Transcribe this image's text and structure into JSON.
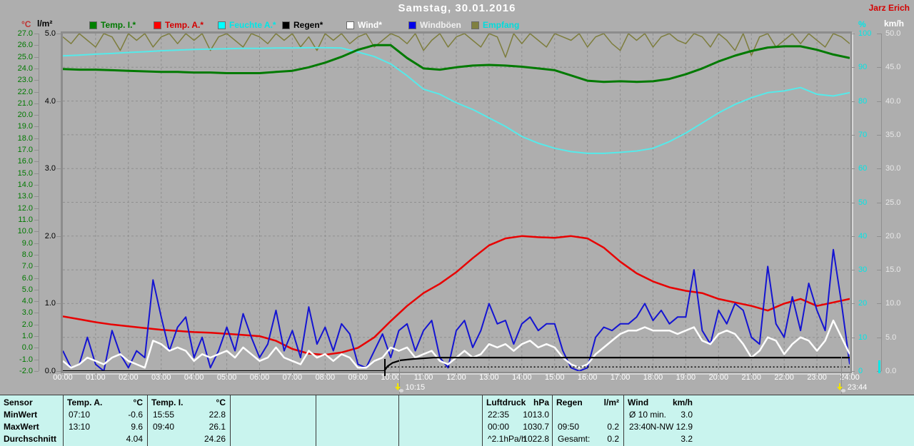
{
  "window": {
    "title": "Samstag, 30.01.2016",
    "operator": "Jarz Erich"
  },
  "axes": {
    "degC": {
      "unit": "°C",
      "labels": [
        "27.0",
        "26.0",
        "25.0",
        "24.0",
        "23.0",
        "22.0",
        "21.0",
        "20.0",
        "19.0",
        "18.0",
        "17.0",
        "16.0",
        "15.0",
        "14.0",
        "13.0",
        "12.0",
        "11.0",
        "10.0",
        "9.0",
        "8.0",
        "7.0",
        "6.0",
        "5.0",
        "4.0",
        "3.0",
        "2.0",
        "1.0",
        "0.0",
        "-1.0",
        "-2.0"
      ]
    },
    "lm2": {
      "unit": "l/m²",
      "labels": [
        "5.0",
        "4.0",
        "3.0",
        "2.0",
        "1.0",
        "0.0"
      ]
    },
    "pct": {
      "unit": "%",
      "labels": [
        "100",
        "90",
        "80",
        "70",
        "60",
        "50",
        "40",
        "30",
        "20",
        "10",
        "0"
      ]
    },
    "kmh": {
      "unit": "km/h",
      "labels": [
        "50.0",
        "45.0",
        "40.0",
        "35.0",
        "30.0",
        "25.0",
        "20.0",
        "15.0",
        "10.0",
        "5.0",
        "0.0"
      ]
    }
  },
  "xaxis": {
    "labels": [
      "00:00",
      "01:00",
      "02:00",
      "03:00",
      "04:00",
      "05:00",
      "06:00",
      "07:00",
      "08:00",
      "09:00",
      "10:00",
      "11:00",
      "12:00",
      "13:00",
      "14:00",
      "15:00",
      "16:00",
      "17:00",
      "18:00",
      "19:00",
      "20:00",
      "21:00",
      "22:00",
      "23:00",
      "24:00"
    ],
    "markers": [
      {
        "label": "10:15",
        "t": 10.25
      },
      {
        "label": "23:44",
        "t": 23.733
      }
    ]
  },
  "legend": {
    "items": [
      {
        "key": "temp-i",
        "label": "Temp. I.*",
        "swatch": "#008000",
        "text_color": "#007a00"
      },
      {
        "key": "temp-a",
        "label": "Temp. A.*",
        "swatch": "#ff0000",
        "text_color": "#d40000"
      },
      {
        "key": "feuchte-a",
        "label": "Feuchte A.*",
        "swatch": "#00ffff",
        "text_color": "#00e6e6"
      },
      {
        "key": "regen",
        "label": "Regen*",
        "swatch": "#000000",
        "text_color": "#000000"
      },
      {
        "key": "wind",
        "label": "Wind*",
        "swatch": "#ffffff",
        "text_color": "#ffffff"
      },
      {
        "key": "windboeen",
        "label": "Windböen",
        "swatch": "#0000e8",
        "text_color": "#f0f0f0"
      },
      {
        "key": "empfang",
        "label": "Empfang",
        "swatch": "#808040",
        "text_color": "#00dcdc"
      }
    ]
  },
  "chart_data": {
    "type": "line",
    "title": "Samstag, 30.01.2016",
    "x_range": [
      0,
      24
    ],
    "axes_ranges": {
      "degC": {
        "min": -2,
        "max": 27
      },
      "lm2": {
        "min": 0,
        "max": 5
      },
      "pct": {
        "min": 0,
        "max": 100
      },
      "kmh": {
        "min": 0,
        "max": 50
      }
    },
    "series": [
      {
        "key": "empfang",
        "name": "Empfang",
        "axis": "pct",
        "color": "#7d7d3c",
        "start": 0,
        "step": 0.25,
        "values": [
          99,
          97,
          100,
          98,
          96,
          100,
          99,
          95,
          100,
          98,
          100,
          96,
          99,
          100,
          97,
          100,
          98,
          100,
          95,
          99,
          100,
          98,
          96,
          100,
          99,
          97,
          100,
          98,
          100,
          96,
          99,
          95,
          100,
          98,
          100,
          97,
          99,
          100,
          96,
          98,
          100,
          99,
          97,
          100,
          95,
          98,
          100,
          96,
          99,
          100,
          98,
          96,
          100,
          99,
          93,
          100,
          97,
          100,
          98,
          96,
          100,
          99,
          98,
          100,
          96,
          99,
          100,
          97,
          95,
          100,
          98,
          100,
          96,
          99,
          100,
          98,
          97,
          100,
          99,
          96,
          100,
          98,
          95,
          100,
          93.5,
          99,
          100,
          96,
          98,
          100,
          97,
          100,
          98,
          96,
          100,
          99,
          97
        ]
      },
      {
        "key": "feuchte-a",
        "name": "Feuchte A.",
        "axis": "pct",
        "color": "#55eaea",
        "start": 0,
        "step": 0.5,
        "values": [
          93.4,
          93.6,
          93.9,
          94.1,
          94.4,
          94.6,
          94.9,
          95.1,
          95.3,
          95.4,
          95.5,
          95.6,
          95.6,
          95.7,
          95.7,
          95.8,
          95.8,
          95.7,
          94.5,
          93.2,
          91.0,
          87.5,
          83.5,
          82.0,
          79.5,
          77.5,
          75.0,
          72.5,
          69.5,
          67.5,
          66.0,
          65.0,
          64.5,
          64.5,
          64.8,
          65.2,
          66.0,
          68.0,
          70.5,
          73.5,
          76.5,
          79.0,
          81.0,
          82.5,
          83.0,
          84.0,
          82.0,
          81.5,
          82.5
        ]
      },
      {
        "key": "temp-i",
        "name": "Temp. I.",
        "axis": "degC",
        "color": "#007a00",
        "start": 0,
        "step": 0.5,
        "values": [
          23.95,
          23.9,
          23.9,
          23.85,
          23.8,
          23.75,
          23.7,
          23.7,
          23.65,
          23.65,
          23.6,
          23.6,
          23.6,
          23.7,
          23.8,
          24.1,
          24.5,
          25.0,
          25.6,
          26.0,
          26.0,
          24.9,
          24.0,
          23.9,
          24.1,
          24.25,
          24.3,
          24.25,
          24.15,
          24.0,
          23.85,
          23.4,
          22.95,
          22.85,
          22.9,
          22.85,
          22.9,
          23.1,
          23.5,
          24.0,
          24.6,
          25.1,
          25.5,
          25.8,
          25.9,
          25.9,
          25.6,
          25.2,
          24.9
        ]
      },
      {
        "key": "temp-a",
        "name": "Temp. A.",
        "axis": "degC",
        "color": "#e80000",
        "start": 0,
        "step": 0.5,
        "values": [
          2.7,
          2.45,
          2.2,
          2.0,
          1.85,
          1.7,
          1.55,
          1.45,
          1.35,
          1.3,
          1.2,
          1.1,
          1.0,
          0.6,
          -0.1,
          -0.5,
          -0.6,
          -0.4,
          0.0,
          0.9,
          2.3,
          3.6,
          4.7,
          5.5,
          6.5,
          7.7,
          8.8,
          9.4,
          9.6,
          9.5,
          9.45,
          9.6,
          9.4,
          8.6,
          7.4,
          6.4,
          5.7,
          5.2,
          4.9,
          4.7,
          4.2,
          3.9,
          3.6,
          3.2,
          3.8,
          4.2,
          3.6,
          3.9,
          4.2
        ]
      },
      {
        "key": "windboeen",
        "name": "Windböen",
        "axis": "kmh",
        "color": "#1414d2",
        "start": 0,
        "step": 0.25,
        "values": [
          3,
          0.5,
          1,
          5,
          1,
          0,
          6,
          2.5,
          0.5,
          3,
          2,
          13.5,
          8,
          3,
          6.5,
          8,
          2,
          5,
          0.5,
          3,
          6.5,
          3,
          8.5,
          5,
          2,
          4,
          9,
          3,
          6,
          2,
          9.5,
          4,
          6.5,
          3,
          7,
          5.5,
          1,
          0.5,
          3,
          5.5,
          2,
          6,
          7,
          3,
          6,
          7.5,
          2,
          0.5,
          6,
          7.5,
          3.5,
          6,
          10,
          7,
          7.5,
          4,
          7,
          8,
          6,
          7,
          7,
          3,
          0.5,
          0,
          0.5,
          5,
          6.5,
          6,
          7,
          7,
          8,
          10,
          7.5,
          9,
          7,
          8,
          8,
          15,
          6,
          4,
          9,
          7,
          10,
          9,
          5,
          4,
          15.5,
          7,
          5,
          11,
          6,
          13,
          9,
          6,
          18,
          10,
          1
        ]
      },
      {
        "key": "wind",
        "name": "Wind",
        "axis": "kmh",
        "color": "#ffffff",
        "start": 0,
        "step": 0.25,
        "values": [
          1.5,
          0.5,
          1,
          2,
          1.5,
          1,
          2,
          2.5,
          1.5,
          1,
          0.5,
          4.5,
          4,
          3,
          3.5,
          3,
          1.5,
          2.5,
          2,
          2.5,
          3,
          2,
          3.5,
          2.5,
          1.5,
          2,
          3.5,
          2,
          1.5,
          1,
          3,
          2,
          2.5,
          1.5,
          2.5,
          2,
          0.5,
          0.5,
          1.5,
          2,
          3.5,
          3,
          3.5,
          2,
          2.5,
          3,
          1.5,
          1,
          2,
          3,
          2,
          2.5,
          4,
          3.5,
          4,
          3,
          4,
          4.5,
          3.5,
          4,
          3.5,
          2,
          1,
          0.5,
          1,
          2.5,
          3.5,
          4.5,
          5.5,
          6,
          6,
          6.5,
          6,
          6,
          6,
          5.5,
          6,
          6.5,
          4.5,
          4,
          5.5,
          6,
          5.5,
          4,
          2,
          3,
          5,
          4.5,
          2.5,
          4,
          5,
          4.5,
          3,
          4.5,
          7.5,
          5,
          2.5
        ]
      },
      {
        "key": "regen",
        "name": "Regen",
        "axis": "lm2",
        "color": "#000000",
        "points": [
          [
            0,
            0
          ],
          [
            9.8,
            0
          ],
          [
            9.9,
            0.07
          ],
          [
            10.05,
            0.12
          ],
          [
            10.3,
            0.16
          ],
          [
            10.7,
            0.18
          ],
          [
            11.3,
            0.2
          ],
          [
            24,
            0.2
          ]
        ]
      },
      {
        "key": "regen-rate",
        "name": "Regen Rate",
        "axis": "lm2",
        "color": "#000000",
        "dashed": true,
        "points": [
          [
            9.9,
            0.06
          ],
          [
            24,
            0.06
          ]
        ]
      }
    ],
    "event_ticks": [
      {
        "t": 9.82,
        "color": "#000000"
      }
    ],
    "grid": {
      "h_divisions": 10,
      "v_divisions": 24
    }
  },
  "table": {
    "row_labels": [
      "Sensor",
      "MinWert",
      "MaxWert",
      "Durchschnitt"
    ],
    "columns": [
      {
        "header": "Temp. A.",
        "unit": "°C",
        "rows": [
          [
            "07:10",
            "-0.6"
          ],
          [
            "13:10",
            "9.6"
          ],
          [
            "",
            "4.04"
          ]
        ]
      },
      {
        "header": "Temp. I.",
        "unit": "°C",
        "rows": [
          [
            "15:55",
            "22.8"
          ],
          [
            "09:40",
            "26.1"
          ],
          [
            "",
            "24.26"
          ]
        ]
      },
      {
        "header": "",
        "unit": "",
        "rows": [
          [
            "",
            ""
          ],
          [
            "",
            ""
          ],
          [
            "",
            ""
          ]
        ]
      },
      {
        "header": "",
        "unit": "",
        "rows": [
          [
            "",
            ""
          ],
          [
            "",
            ""
          ],
          [
            "",
            ""
          ]
        ]
      },
      {
        "header": "",
        "unit": "",
        "rows": [
          [
            "",
            ""
          ],
          [
            "",
            ""
          ],
          [
            "",
            ""
          ]
        ]
      },
      {
        "header": "Luftdruck",
        "unit": "hPa",
        "rows": [
          [
            "22:35",
            "1013.0"
          ],
          [
            "00:00",
            "1030.7"
          ],
          [
            "^2.1hPa/h",
            "1022.8"
          ]
        ]
      },
      {
        "header": "Regen",
        "unit": "l/m²",
        "rows": [
          [
            "",
            ""
          ],
          [
            "09:50",
            "0.2"
          ],
          [
            "Gesamt:",
            "0.2"
          ]
        ]
      },
      {
        "header": "Wind",
        "unit": "km/h",
        "rows": [
          [
            "Ø 10 min.",
            "3.0"
          ],
          [
            "23:40",
            "N-NW 12.9"
          ],
          [
            "",
            "3.2"
          ]
        ]
      }
    ]
  },
  "colors": {
    "window_bg": "#aeaeae",
    "grid": "#8f8f8f",
    "table_bg": "#c9f4ee",
    "title_text": "#ffffff",
    "operator_text": "#d40000",
    "unit_degC": "#c03232",
    "unit_lm2": "#000000",
    "unit_pct": "#00e6e6",
    "unit_kmh": "#ffffff"
  }
}
